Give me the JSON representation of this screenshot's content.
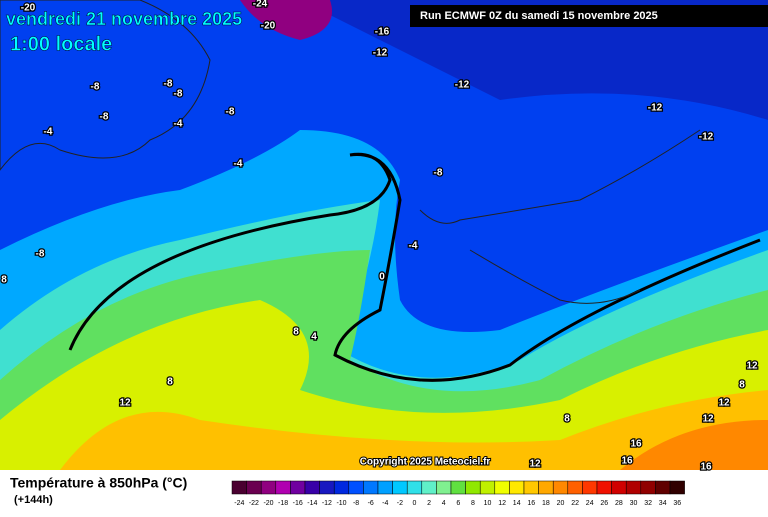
{
  "header": {
    "title": "vendredi 21 novembre 2025",
    "subtitle": "1:00 locale",
    "run": "Run ECMWF 0Z du samedi 15 novembre 2025"
  },
  "copyright": "Copyright 2025 Meteociel.fr",
  "legend": {
    "title": "Température à 850hPa (°C)",
    "lead": "(+144h)",
    "labels": [
      -24,
      -22,
      -20,
      -18,
      -16,
      -14,
      -12,
      -10,
      -8,
      -6,
      -4,
      -2,
      0,
      2,
      4,
      6,
      8,
      10,
      12,
      14,
      16,
      18,
      20,
      22,
      24,
      26,
      28,
      30,
      32,
      34,
      36
    ],
    "colors": [
      "#4a0030",
      "#6a0050",
      "#900080",
      "#b000b0",
      "#7000a0",
      "#3800a8",
      "#1818c0",
      "#0028e0",
      "#0050ff",
      "#0078ff",
      "#00a0ff",
      "#00c8ff",
      "#30e0e8",
      "#60f0c8",
      "#80f090",
      "#60e040",
      "#90e800",
      "#c0f000",
      "#f0ff00",
      "#ffe800",
      "#ffc800",
      "#ffa800",
      "#ff8800",
      "#ff6000",
      "#ff3800",
      "#f01000",
      "#d00000",
      "#b00000",
      "#900000",
      "#600000",
      "#300000"
    ]
  },
  "contour_labels": [
    -20,
    -24,
    -20,
    -16,
    -12,
    -8,
    -8,
    -8,
    -12,
    -12,
    -8,
    -4,
    -4,
    -8,
    -12,
    -4,
    -8,
    -4,
    -8,
    8,
    0,
    8,
    4,
    8,
    12,
    12,
    8,
    12,
    8,
    12,
    16,
    16,
    12,
    16
  ]
}
